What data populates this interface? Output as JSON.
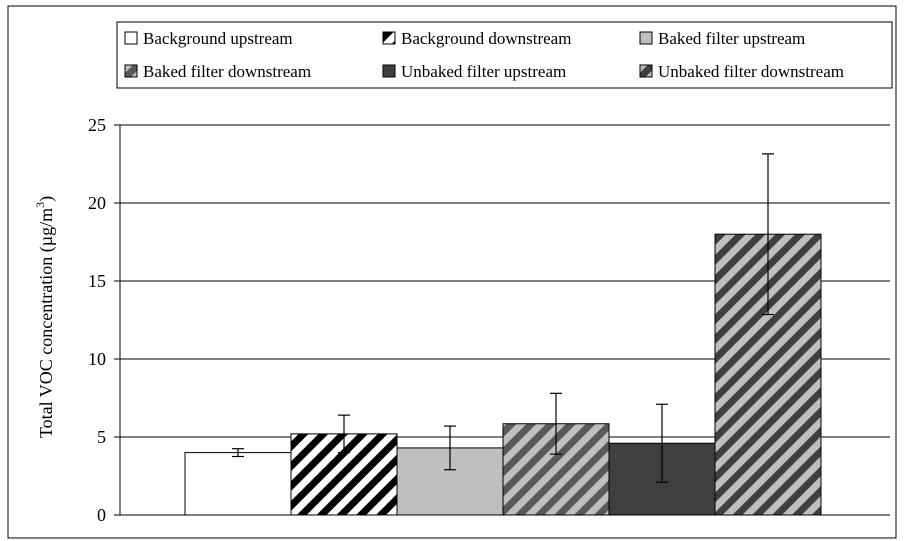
{
  "chart_data": {
    "type": "bar",
    "title": "",
    "xlabel": "",
    "ylabel": "Total VOC concentration (µg/m³)",
    "ylabel_main": "Total VOC concentration (µg/m",
    "ylabel_sup": "3",
    "ylabel_end": ")",
    "ylim": [
      0,
      25
    ],
    "yticks": [
      "0",
      "5",
      "10",
      "15",
      "20",
      "25"
    ],
    "grid": true,
    "legend_position": "top",
    "series": [
      {
        "name": "Background upstream",
        "value": 4.0,
        "err": 0.25,
        "fill": "white",
        "color": "#ffffff"
      },
      {
        "name": "Background downstream",
        "value": 5.2,
        "err": 1.2,
        "fill": "stripe",
        "color": "#000000",
        "bg": "#ffffff"
      },
      {
        "name": "Baked filter upstream",
        "value": 4.3,
        "err": 1.4,
        "fill": "solid",
        "color": "#bfbfbf"
      },
      {
        "name": "Baked filter downstream",
        "value": 5.85,
        "err": 1.95,
        "fill": "stripe",
        "color": "#595959",
        "bg": "#bfbfbf"
      },
      {
        "name": "Unbaked filter upstream",
        "value": 4.6,
        "err": 2.5,
        "fill": "solid",
        "color": "#3f3f3f"
      },
      {
        "name": "Unbaked filter downstream",
        "value": 18.0,
        "err": 5.15,
        "fill": "stripe",
        "color": "#3f3f3f",
        "bg": "#bfbfbf"
      }
    ]
  }
}
